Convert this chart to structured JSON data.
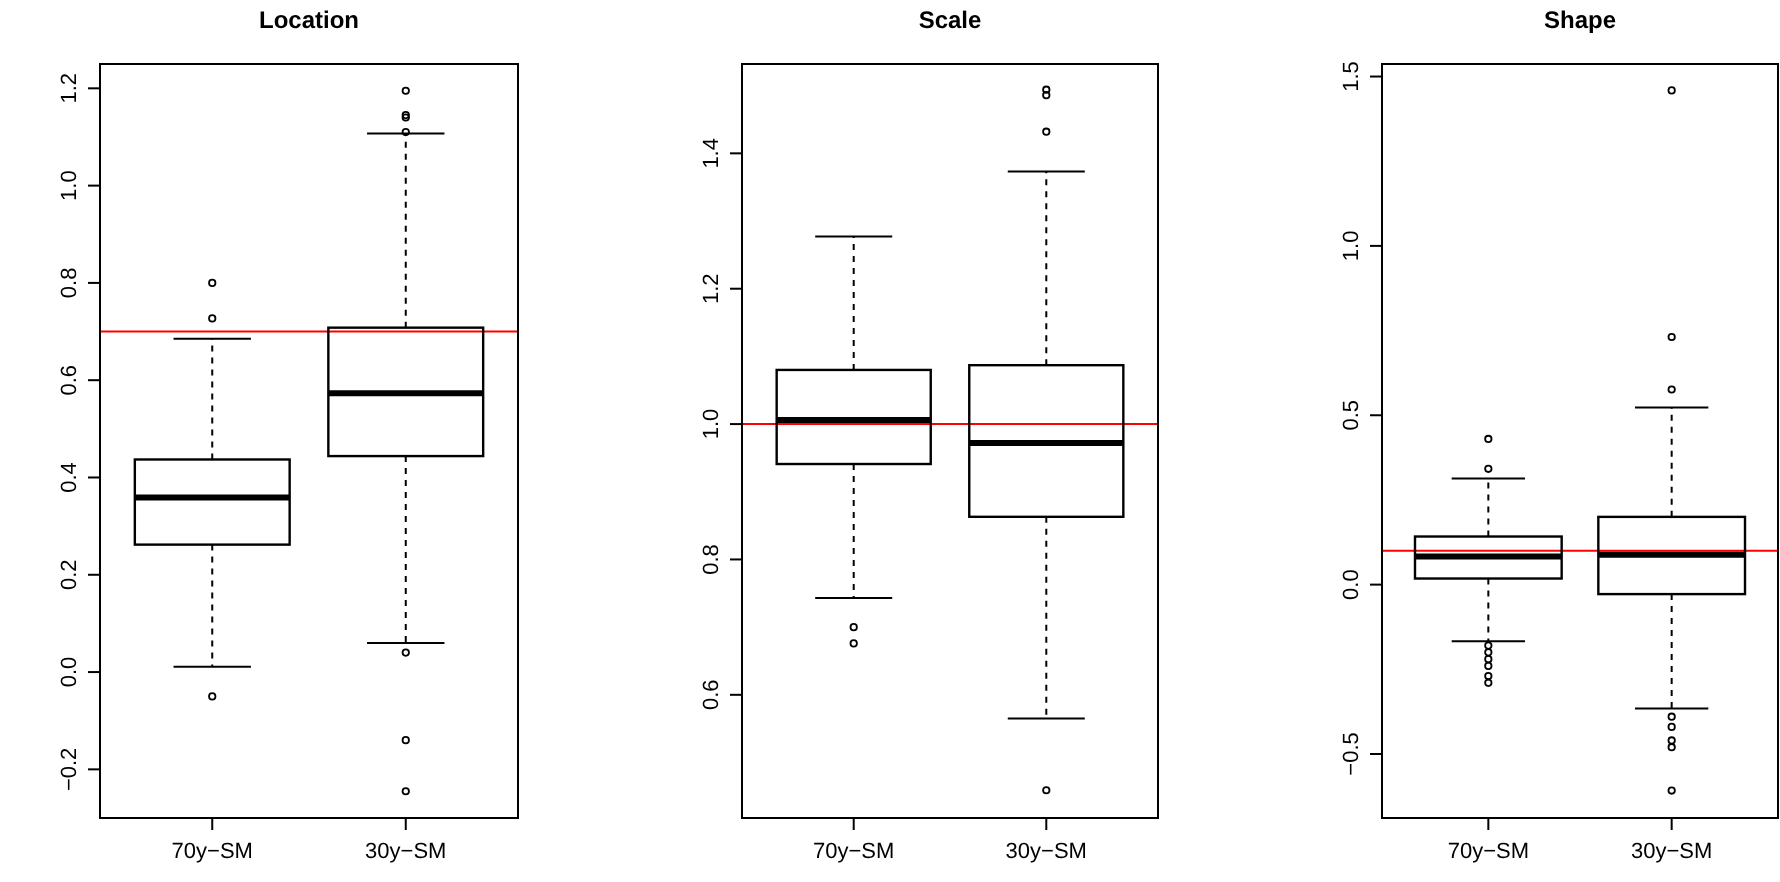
{
  "chart_data": [
    {
      "type": "box",
      "title": "Location",
      "categories": [
        "70y−SM",
        "30y−SM"
      ],
      "ylim": [
        -0.3,
        1.25
      ],
      "yticks": [
        {
          "value": -0.2,
          "label": "−0.2"
        },
        {
          "value": 0,
          "label": "0.0"
        },
        {
          "value": 0.2,
          "label": "0.2"
        },
        {
          "value": 0.4,
          "label": "0.4"
        },
        {
          "value": 0.6,
          "label": "0.6"
        },
        {
          "value": 0.8,
          "label": "0.8"
        },
        {
          "value": 1,
          "label": "1.0"
        },
        {
          "value": 1.2,
          "label": "1.2"
        }
      ],
      "boxes": [
        {
          "low": 0.011,
          "q1": 0.262,
          "median": 0.359,
          "q3": 0.437,
          "high": 0.685,
          "outliers": [
            0.727,
            0.8,
            -0.05
          ]
        },
        {
          "low": 0.06,
          "q1": 0.444,
          "median": 0.573,
          "q3": 0.708,
          "high": 1.107,
          "outliers": [
            1.11,
            1.14,
            1.145,
            1.195,
            0.04,
            -0.14,
            -0.245
          ]
        }
      ],
      "ref_lines": [
        {
          "axis": "y",
          "value": 0.7,
          "color": "#ff0000"
        }
      ]
    },
    {
      "type": "box",
      "title": "Scale",
      "categories": [
        "70y−SM",
        "30y−SM"
      ],
      "ylim": [
        0.418,
        1.532
      ],
      "yticks": [
        {
          "value": 0.6,
          "label": "0.6"
        },
        {
          "value": 0.8,
          "label": "0.8"
        },
        {
          "value": 1,
          "label": "1.0"
        },
        {
          "value": 1.2,
          "label": "1.2"
        },
        {
          "value": 1.4,
          "label": "1.4"
        }
      ],
      "boxes": [
        {
          "low": 0.743,
          "q1": 0.941,
          "median": 1.006,
          "q3": 1.08,
          "high": 1.277,
          "outliers": [
            0.7,
            0.676
          ]
        },
        {
          "low": 0.565,
          "q1": 0.863,
          "median": 0.972,
          "q3": 1.087,
          "high": 1.373,
          "outliers": [
            1.494,
            1.486,
            1.432,
            0.459
          ]
        }
      ],
      "ref_lines": [
        {
          "axis": "y",
          "value": 1,
          "color": "#ff0000"
        }
      ]
    },
    {
      "type": "box",
      "title": "Shape",
      "categories": [
        "70y−SM",
        "30y−SM"
      ],
      "ylim": [
        -0.689,
        1.537
      ],
      "yticks": [
        {
          "value": -0.5,
          "label": "−0.5"
        },
        {
          "value": 0,
          "label": "0.0"
        },
        {
          "value": 0.5,
          "label": "0.5"
        },
        {
          "value": 1,
          "label": "1.0"
        },
        {
          "value": 1.5,
          "label": "1.5"
        }
      ],
      "boxes": [
        {
          "low": -0.167,
          "q1": 0.018,
          "median": 0.083,
          "q3": 0.142,
          "high": 0.313,
          "outliers": [
            0.43,
            0.342,
            -0.18,
            -0.2,
            -0.22,
            -0.24,
            -0.27,
            -0.29
          ]
        },
        {
          "low": -0.366,
          "q1": -0.028,
          "median": 0.088,
          "q3": 0.2,
          "high": 0.523,
          "outliers": [
            0.576,
            0.731,
            1.459,
            -0.39,
            -0.42,
            -0.46,
            -0.48,
            -0.608
          ]
        }
      ],
      "ref_lines": [
        {
          "axis": "y",
          "value": 0.1,
          "color": "#ff0000"
        }
      ]
    }
  ]
}
